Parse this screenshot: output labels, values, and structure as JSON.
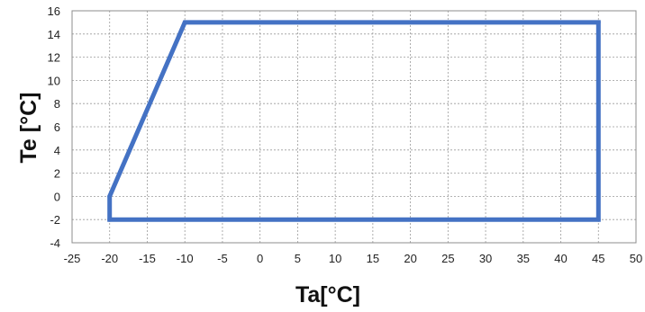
{
  "chart_data": {
    "type": "line",
    "xlabel": "Ta[°C]",
    "ylabel": "Te [°C]",
    "xlim": [
      -25,
      50
    ],
    "ylim": [
      -4,
      16
    ],
    "x_ticks": [
      -25,
      -20,
      -15,
      -10,
      -5,
      0,
      5,
      10,
      15,
      20,
      25,
      30,
      35,
      40,
      45,
      50
    ],
    "y_ticks": [
      -4,
      -2,
      0,
      2,
      4,
      6,
      8,
      10,
      12,
      14,
      16
    ],
    "grid": true,
    "legend": "none",
    "series": [
      {
        "color": "#4472c4",
        "closed": true,
        "points": [
          {
            "x": -20,
            "y": 0
          },
          {
            "x": -10,
            "y": 15
          },
          {
            "x": 45,
            "y": 15
          },
          {
            "x": 45,
            "y": -2
          },
          {
            "x": -20,
            "y": -2
          }
        ]
      }
    ],
    "colors": {
      "grid": "#9a9a9a",
      "axis": "#8c8c8c",
      "text": "#222222"
    }
  }
}
